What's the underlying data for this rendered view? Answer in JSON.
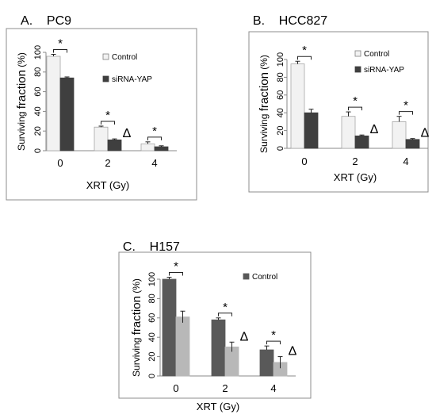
{
  "panels": [
    {
      "letter": "A.",
      "name": "PC9",
      "chart_data": {
        "type": "bar",
        "categories": [
          "0",
          "2",
          "4"
        ],
        "xlabel": "XRT (Gy)",
        "ylabel_part1": "Surviving ",
        "ylabel_part2": "fraction",
        "ylabel_part3": " (%)",
        "ylim": [
          0,
          100
        ],
        "yticks": [
          "0",
          "20",
          "40",
          "60",
          "80",
          "100"
        ],
        "series": [
          {
            "name": "Control",
            "color": "#f2f2f2",
            "values": [
              96,
              24,
              7
            ],
            "errors": [
              2,
              1,
              2
            ]
          },
          {
            "name": "siRNA-YAP",
            "color": "#3f3f3f",
            "values": [
              74,
              11,
              4
            ],
            "errors": [
              1,
              1,
              1
            ]
          }
        ],
        "significance": [
          "*",
          "*",
          "*"
        ],
        "delta": [
          null,
          "Δ",
          null
        ],
        "legend": "right"
      }
    },
    {
      "letter": "B.",
      "name": "HCC827",
      "chart_data": {
        "type": "bar",
        "categories": [
          "0",
          "2",
          "4"
        ],
        "xlabel": "XRT (Gy)",
        "ylabel_part1": "Surviving ",
        "ylabel_part2": "fraction",
        "ylabel_part3": " (%)",
        "ylim": [
          0,
          100
        ],
        "yticks": [
          "0",
          "20",
          "40",
          "60",
          "80",
          "100"
        ],
        "series": [
          {
            "name": "Control",
            "color": "#f2f2f2",
            "values": [
              95,
              36,
              30
            ],
            "errors": [
              3,
              5,
              6
            ]
          },
          {
            "name": "siRNA-YAP",
            "color": "#3f3f3f",
            "values": [
              40,
              14,
              10
            ],
            "errors": [
              4,
              1,
              1
            ]
          }
        ],
        "significance": [
          "*",
          "*",
          "*"
        ],
        "delta": [
          null,
          "Δ",
          "Δ"
        ],
        "legend": "right"
      }
    },
    {
      "letter": "C.",
      "name": "H157",
      "chart_data": {
        "type": "bar",
        "categories": [
          "0",
          "2",
          "4"
        ],
        "xlabel": "XRT (Gy)",
        "ylabel_part1": "Surviving ",
        "ylabel_part2": "fraction",
        "ylabel_part3": " (%)",
        "ylim": [
          0,
          100
        ],
        "yticks": [
          "0",
          "20",
          "40",
          "60",
          "80",
          "100"
        ],
        "series": [
          {
            "name": "Control",
            "color": "#595959",
            "values": [
              100,
              58,
              27
            ],
            "errors": [
              2,
              2,
              4
            ]
          },
          {
            "name": "",
            "color": "#b8b8b8",
            "values": [
              61,
              30,
              14
            ],
            "errors": [
              6,
              5,
              6
            ]
          }
        ],
        "significance": [
          "*",
          "*",
          "*"
        ],
        "delta": [
          null,
          "Δ",
          "Δ"
        ],
        "legend": "right"
      }
    }
  ]
}
